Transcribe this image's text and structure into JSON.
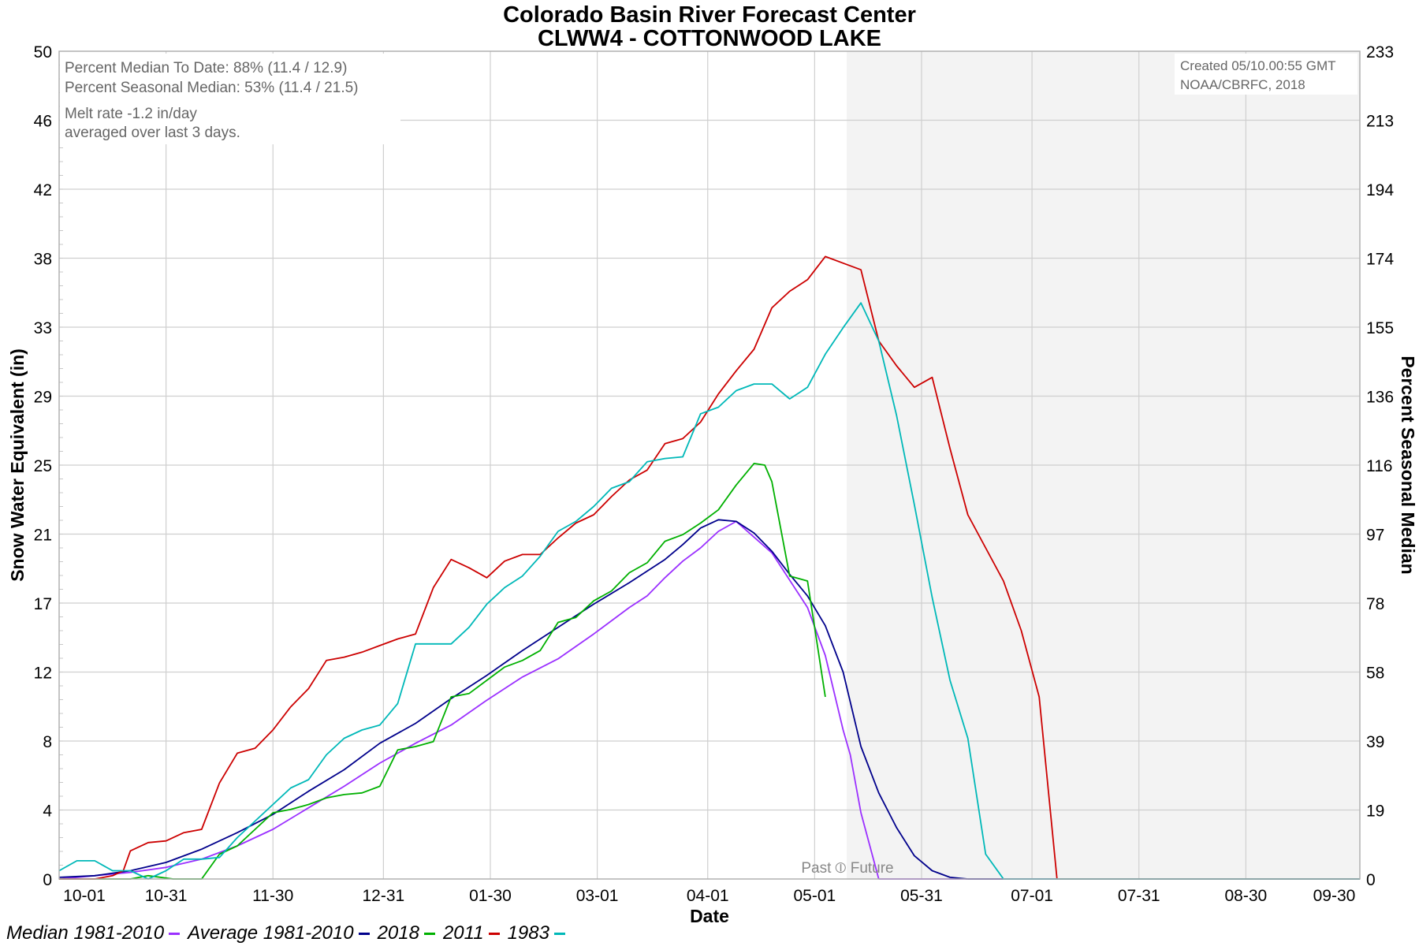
{
  "chart_data": {
    "type": "line",
    "title": "Colorado Basin River Forecast Center",
    "subtitle": "CLWW4 - COTTONWOOD LAKE",
    "xlabel": "Date",
    "ylabel": "Snow Water Equivalent (in)",
    "ylabel_right": "Percent Seasonal Median",
    "xlim": [
      0,
      365
    ],
    "ylim": [
      0,
      50
    ],
    "x_ticks": [
      "10-01",
      "10-31",
      "11-30",
      "12-31",
      "01-30",
      "03-01",
      "04-01",
      "05-01",
      "05-31",
      "07-01",
      "07-31",
      "08-30",
      "09-30"
    ],
    "y_ticks": [
      "0",
      "4",
      "8",
      "12",
      "17",
      "21",
      "25",
      "29",
      "33",
      "38",
      "42",
      "46",
      "50"
    ],
    "y_ticks_right": [
      "0",
      "19",
      "39",
      "58",
      "78",
      "97",
      "116",
      "136",
      "155",
      "174",
      "194",
      "213",
      "233"
    ],
    "grid": true,
    "future_shade_start": "05-10",
    "past_future_label": "Past ⦶ Future",
    "info_box": {
      "line1": "Percent Median To Date: 88% (11.4 / 12.9)",
      "line2": "Percent Seasonal Median: 53% (11.4 / 21.5)",
      "line3": "Melt rate -1.2 in/day",
      "line4": "averaged over last 3 days."
    },
    "created_box": {
      "line1": "Created 05/10.00:55 GMT",
      "line2": "NOAA/CBRFC, 2018"
    },
    "series": [
      {
        "name": "Median 1981-2010",
        "color": "#9b30ff",
        "x": [
          0,
          10,
          20,
          30,
          40,
          50,
          60,
          70,
          80,
          90,
          100,
          110,
          120,
          130,
          140,
          150,
          160,
          165,
          170,
          175,
          180,
          185,
          190,
          200,
          210,
          215,
          220,
          222,
          225,
          230
        ],
        "y": [
          0,
          0.2,
          0.4,
          0.7,
          1.2,
          2.0,
          3.0,
          4.3,
          5.6,
          7.0,
          8.2,
          9.3,
          10.8,
          12.2,
          13.3,
          14.8,
          16.4,
          17.1,
          18.2,
          19.2,
          20.0,
          21.0,
          21.6,
          19.7,
          16.4,
          13.5,
          9.0,
          7.5,
          4.0,
          0
        ]
      },
      {
        "name": "Average 1981-2010",
        "color": "#00008b",
        "x": [
          0,
          10,
          20,
          30,
          40,
          50,
          60,
          70,
          80,
          90,
          100,
          110,
          120,
          130,
          140,
          150,
          160,
          170,
          175,
          180,
          185,
          190,
          195,
          200,
          205,
          210,
          215,
          220,
          225,
          230,
          235,
          240,
          245,
          250,
          255
        ],
        "y": [
          0.1,
          0.2,
          0.5,
          1.0,
          1.8,
          2.8,
          3.9,
          5.3,
          6.6,
          8.2,
          9.4,
          10.9,
          12.3,
          13.8,
          15.2,
          16.6,
          17.9,
          19.3,
          20.2,
          21.2,
          21.7,
          21.6,
          20.9,
          19.8,
          18.4,
          17.1,
          15.3,
          12.5,
          8.0,
          5.2,
          3.1,
          1.4,
          0.5,
          0.1,
          0
        ]
      },
      {
        "name": "2018",
        "color": "#00b000",
        "x": [
          0,
          20,
          25,
          32,
          40,
          45,
          50,
          55,
          60,
          65,
          70,
          75,
          80,
          85,
          90,
          95,
          100,
          105,
          110,
          115,
          120,
          125,
          130,
          135,
          140,
          145,
          150,
          155,
          160,
          165,
          170,
          175,
          180,
          185,
          190,
          195,
          198,
          200,
          205,
          210,
          215
        ],
        "y": [
          0,
          0,
          0.2,
          0,
          0,
          1.5,
          2.0,
          3.0,
          4.0,
          4.2,
          4.5,
          4.9,
          5.1,
          5.2,
          5.6,
          7.8,
          8.0,
          8.3,
          11.0,
          11.2,
          12.0,
          12.8,
          13.2,
          13.8,
          15.5,
          15.8,
          16.8,
          17.4,
          18.5,
          19.1,
          20.4,
          20.8,
          21.5,
          22.3,
          23.8,
          25.1,
          25.0,
          24.0,
          18.3,
          18.0,
          11.0
        ]
      },
      {
        "name": "2011",
        "color": "#cc0000",
        "x": [
          0,
          10,
          15,
          18,
          20,
          25,
          30,
          35,
          40,
          45,
          50,
          55,
          60,
          65,
          70,
          75,
          80,
          85,
          90,
          95,
          100,
          105,
          110,
          115,
          120,
          125,
          130,
          135,
          140,
          145,
          150,
          155,
          160,
          165,
          170,
          175,
          180,
          185,
          190,
          195,
          200,
          205,
          210,
          215,
          220,
          225,
          230,
          235,
          240,
          245,
          250,
          255,
          260,
          265,
          270,
          275,
          280
        ],
        "y": [
          0,
          0,
          0.2,
          0.5,
          1.7,
          2.2,
          2.3,
          2.8,
          3.0,
          5.8,
          7.6,
          7.9,
          9.0,
          10.4,
          11.5,
          13.2,
          13.4,
          13.7,
          14.1,
          14.5,
          14.8,
          17.6,
          19.3,
          18.8,
          18.2,
          19.2,
          19.6,
          19.6,
          20.6,
          21.5,
          22.0,
          23.1,
          24.1,
          24.7,
          26.3,
          26.6,
          27.6,
          29.3,
          30.7,
          32.0,
          34.5,
          35.5,
          36.2,
          37.6,
          37.2,
          36.8,
          32.5,
          31.0,
          29.7,
          30.3,
          26.0,
          22.0,
          20.0,
          18.0,
          15.0,
          11.0,
          0
        ]
      },
      {
        "name": "1983",
        "color": "#00b8b8",
        "x": [
          0,
          5,
          10,
          15,
          20,
          25,
          30,
          35,
          40,
          45,
          50,
          55,
          60,
          65,
          70,
          75,
          80,
          85,
          90,
          95,
          100,
          105,
          110,
          115,
          120,
          125,
          130,
          135,
          140,
          145,
          150,
          155,
          160,
          165,
          170,
          175,
          180,
          185,
          190,
          195,
          200,
          205,
          210,
          215,
          220,
          225,
          230,
          235,
          240,
          245,
          250,
          255,
          260,
          265,
          270,
          275
        ],
        "y": [
          0.5,
          1.1,
          1.1,
          0.5,
          0.5,
          0,
          0.5,
          1.2,
          1.2,
          1.3,
          2.5,
          3.5,
          4.5,
          5.5,
          6.0,
          7.5,
          8.5,
          9.0,
          9.3,
          10.6,
          14.2,
          14.2,
          14.2,
          15.2,
          16.6,
          17.6,
          18.3,
          19.5,
          21.0,
          21.6,
          22.5,
          23.6,
          24.0,
          25.2,
          25.4,
          25.5,
          28.1,
          28.5,
          29.5,
          29.9,
          29.9,
          29.0,
          29.7,
          31.7,
          33.3,
          34.8,
          32.5,
          28.0,
          22.6,
          17.0,
          12.0,
          8.5,
          1.5,
          0,
          0,
          0
        ]
      }
    ]
  }
}
